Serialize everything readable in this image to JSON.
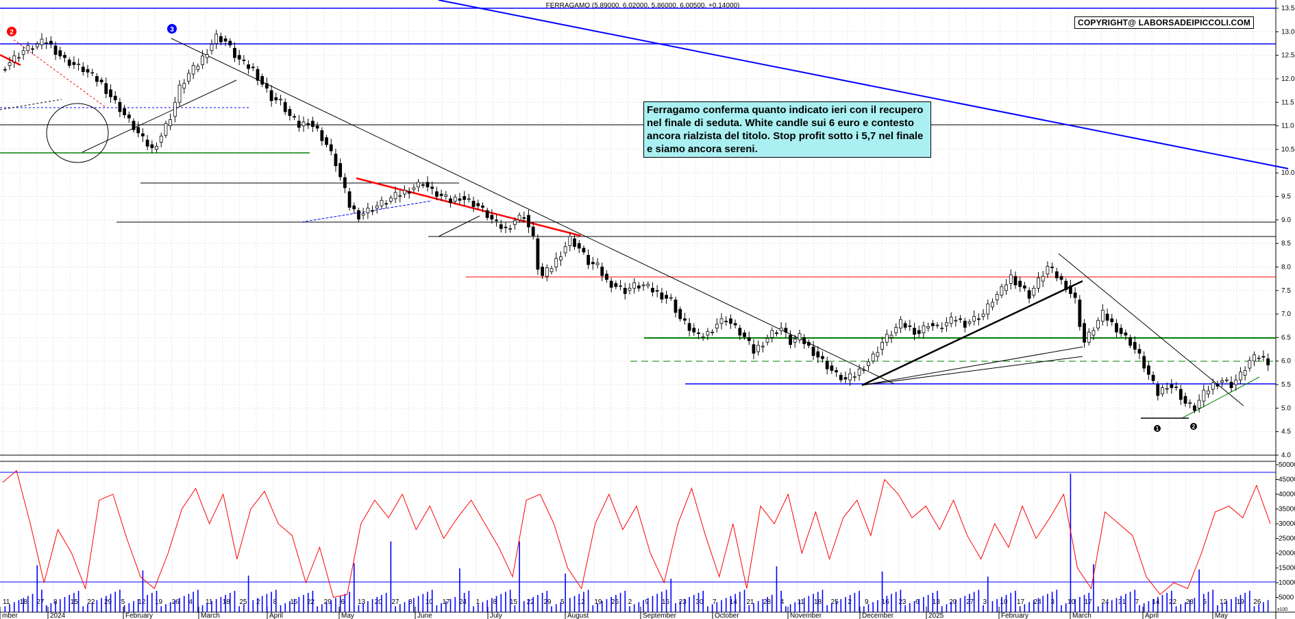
{
  "header": {
    "ticker_line": "FERRAGAMO (5,89000, 6,02000, 5,86000, 6,00500, +0,14000)"
  },
  "copyright": "COPYRIGHT@ LABORSADEIPICCOLI.COM",
  "annotation": "Ferragamo conferma quanto indicato ieri con il recupero nel finale di seduta. White candle sui 6 euro e contesto ancora rialzista del titolo. Stop profit sotto i 5,7 nel finale e siamo ancora sereni.",
  "colors": {
    "support": "#0000ff",
    "green": "#008000",
    "red": "#ff0000",
    "rsi": "#ff0000",
    "volume": "#0000ff",
    "note_bg": "#aaf0f2"
  },
  "markers": {
    "wave_2": "2",
    "wave_3": "3",
    "bottom_1": "1",
    "bottom_2": "2"
  },
  "chart_data": {
    "type": "candlestick",
    "title": "FERRAGAMO (5,89000, 6,02000, 5,86000, 6,00500, +0,14000)",
    "last_bar": {
      "open": 5.89,
      "high": 6.02,
      "low": 5.86,
      "close": 6.005,
      "change": 0.14
    },
    "price_axis": {
      "ticks": [
        "13.5",
        "13.0",
        "12.5",
        "12.0",
        "11.5",
        "11.0",
        "10.5",
        "10.0",
        "9.5",
        "9.0",
        "8.5",
        "8.0",
        "7.5",
        "7.0",
        "6.5",
        "6.0",
        "5.5",
        "5.0",
        "4.5",
        "4.0"
      ],
      "range": [
        4.0,
        13.5
      ]
    },
    "volume_axis": {
      "ticks": [
        "50000",
        "45000",
        "40000",
        "35000",
        "30000",
        "25000",
        "20000",
        "15000",
        "10000",
        "5000"
      ],
      "range": [
        0,
        50000
      ],
      "unit_label": "x100"
    },
    "x_axis": {
      "day_labels": [
        "11",
        "18",
        "27",
        "8",
        "15",
        "22",
        "29",
        "5",
        "12",
        "19",
        "26",
        "4",
        "11",
        "18",
        "25",
        "2",
        "8",
        "15",
        "22",
        "29",
        "6",
        "13",
        "20",
        "27",
        "3",
        "10",
        "17",
        "24",
        "1",
        "8",
        "15",
        "22",
        "29",
        "5",
        "12",
        "19",
        "26",
        "2",
        "9",
        "16",
        "23",
        "30",
        "7",
        "14",
        "21",
        "28",
        "4",
        "11",
        "18",
        "25",
        "2",
        "9",
        "16",
        "23",
        "6",
        "13",
        "20",
        "27",
        "3",
        "10",
        "17",
        "24",
        "3",
        "10",
        "17",
        "24",
        "31",
        "7",
        "14",
        "22",
        "28",
        "5",
        "12",
        "19",
        "26"
      ],
      "month_labels": [
        "mber",
        "2024",
        "February",
        "March",
        "April",
        "May",
        "June",
        "July",
        "August",
        "September",
        "October",
        "November",
        "December",
        "2025",
        "February",
        "March",
        "April",
        "May"
      ]
    },
    "series": [
      {
        "name": "price",
        "points": [
          [
            0,
            12.2
          ],
          [
            5,
            12.6
          ],
          [
            10,
            12.8
          ],
          [
            14,
            12.4
          ],
          [
            18,
            12.2
          ],
          [
            22,
            11.9
          ],
          [
            25,
            11.5
          ],
          [
            28,
            11.1
          ],
          [
            31,
            10.7
          ],
          [
            33,
            10.5
          ],
          [
            35,
            10.8
          ],
          [
            37,
            11.2
          ],
          [
            39,
            11.8
          ],
          [
            41,
            12.1
          ],
          [
            43,
            12.3
          ],
          [
            45,
            12.6
          ],
          [
            47,
            12.9
          ],
          [
            49,
            12.8
          ],
          [
            51,
            12.5
          ],
          [
            53,
            12.3
          ],
          [
            55,
            12.2
          ],
          [
            57,
            11.9
          ],
          [
            59,
            11.6
          ],
          [
            61,
            11.5
          ],
          [
            63,
            11.2
          ],
          [
            65,
            11.0
          ],
          [
            67,
            11.1
          ],
          [
            69,
            10.9
          ],
          [
            71,
            10.6
          ],
          [
            73,
            10.2
          ],
          [
            74,
            9.9
          ],
          [
            75,
            9.6
          ],
          [
            76,
            9.3
          ],
          [
            78,
            9.1
          ],
          [
            80,
            9.2
          ],
          [
            82,
            9.3
          ],
          [
            84,
            9.4
          ],
          [
            86,
            9.5
          ],
          [
            88,
            9.6
          ],
          [
            90,
            9.7
          ],
          [
            92,
            9.8
          ],
          [
            94,
            9.6
          ],
          [
            96,
            9.5
          ],
          [
            98,
            9.4
          ],
          [
            100,
            9.5
          ],
          [
            102,
            9.4
          ],
          [
            104,
            9.3
          ],
          [
            106,
            9.1
          ],
          [
            108,
            8.9
          ],
          [
            110,
            8.8
          ],
          [
            112,
            9.0
          ],
          [
            114,
            9.1
          ],
          [
            116,
            8.6
          ],
          [
            117,
            8.0
          ],
          [
            118,
            7.8
          ],
          [
            120,
            8.0
          ],
          [
            122,
            8.3
          ],
          [
            124,
            8.6
          ],
          [
            126,
            8.4
          ],
          [
            128,
            8.1
          ],
          [
            130,
            8.0
          ],
          [
            132,
            7.7
          ],
          [
            134,
            7.6
          ],
          [
            136,
            7.5
          ],
          [
            138,
            7.6
          ],
          [
            140,
            7.6
          ],
          [
            142,
            7.5
          ],
          [
            144,
            7.4
          ],
          [
            146,
            7.3
          ],
          [
            148,
            6.9
          ],
          [
            150,
            6.7
          ],
          [
            152,
            6.5
          ],
          [
            154,
            6.6
          ],
          [
            156,
            6.8
          ],
          [
            158,
            6.9
          ],
          [
            160,
            6.7
          ],
          [
            162,
            6.5
          ],
          [
            164,
            6.2
          ],
          [
            166,
            6.4
          ],
          [
            168,
            6.6
          ],
          [
            170,
            6.7
          ],
          [
            172,
            6.4
          ],
          [
            174,
            6.5
          ],
          [
            176,
            6.3
          ],
          [
            178,
            6.1
          ],
          [
            180,
            5.9
          ],
          [
            182,
            5.7
          ],
          [
            184,
            5.6
          ],
          [
            186,
            5.7
          ],
          [
            188,
            5.9
          ],
          [
            190,
            6.1
          ],
          [
            192,
            6.4
          ],
          [
            194,
            6.6
          ],
          [
            196,
            6.8
          ],
          [
            198,
            6.7
          ],
          [
            200,
            6.6
          ],
          [
            202,
            6.8
          ],
          [
            204,
            6.7
          ],
          [
            206,
            6.8
          ],
          [
            208,
            6.9
          ],
          [
            210,
            6.8
          ],
          [
            212,
            6.9
          ],
          [
            214,
            7.0
          ],
          [
            216,
            7.3
          ],
          [
            218,
            7.5
          ],
          [
            220,
            7.8
          ],
          [
            222,
            7.6
          ],
          [
            224,
            7.4
          ],
          [
            226,
            7.7
          ],
          [
            228,
            8.0
          ],
          [
            230,
            7.8
          ],
          [
            232,
            7.6
          ],
          [
            234,
            7.3
          ],
          [
            235,
            6.8
          ],
          [
            236,
            6.4
          ],
          [
            238,
            6.7
          ],
          [
            240,
            7.0
          ],
          [
            242,
            6.8
          ],
          [
            244,
            6.6
          ],
          [
            246,
            6.4
          ],
          [
            248,
            6.1
          ],
          [
            250,
            5.7
          ],
          [
            252,
            5.3
          ],
          [
            254,
            5.5
          ],
          [
            256,
            5.4
          ],
          [
            258,
            5.1
          ],
          [
            260,
            5.0
          ],
          [
            262,
            5.3
          ],
          [
            264,
            5.5
          ],
          [
            266,
            5.6
          ],
          [
            268,
            5.5
          ],
          [
            270,
            5.7
          ],
          [
            272,
            6.0
          ],
          [
            274,
            6.1
          ],
          [
            276,
            6.0
          ]
        ]
      },
      {
        "name": "oscillator",
        "points": [
          [
            0,
            44000
          ],
          [
            3,
            48000
          ],
          [
            6,
            30000
          ],
          [
            9,
            10000
          ],
          [
            12,
            28000
          ],
          [
            15,
            20000
          ],
          [
            18,
            8000
          ],
          [
            21,
            38000
          ],
          [
            24,
            40000
          ],
          [
            27,
            25000
          ],
          [
            30,
            12000
          ],
          [
            33,
            8000
          ],
          [
            36,
            20000
          ],
          [
            39,
            35000
          ],
          [
            42,
            42000
          ],
          [
            45,
            30000
          ],
          [
            48,
            40000
          ],
          [
            51,
            18000
          ],
          [
            54,
            35000
          ],
          [
            57,
            41000
          ],
          [
            60,
            30000
          ],
          [
            63,
            26000
          ],
          [
            66,
            10000
          ],
          [
            69,
            22000
          ],
          [
            72,
            5000
          ],
          [
            75,
            6000
          ],
          [
            78,
            30000
          ],
          [
            81,
            38000
          ],
          [
            84,
            32000
          ],
          [
            87,
            40000
          ],
          [
            90,
            28000
          ],
          [
            93,
            36000
          ],
          [
            96,
            25000
          ],
          [
            99,
            32000
          ],
          [
            102,
            38000
          ],
          [
            105,
            30000
          ],
          [
            108,
            22000
          ],
          [
            111,
            12000
          ],
          [
            114,
            38000
          ],
          [
            117,
            40000
          ],
          [
            120,
            30000
          ],
          [
            123,
            15000
          ],
          [
            126,
            8000
          ],
          [
            129,
            30000
          ],
          [
            132,
            40000
          ],
          [
            135,
            28000
          ],
          [
            138,
            36000
          ],
          [
            141,
            20000
          ],
          [
            144,
            10000
          ],
          [
            147,
            30000
          ],
          [
            150,
            42000
          ],
          [
            153,
            26000
          ],
          [
            156,
            12000
          ],
          [
            159,
            30000
          ],
          [
            162,
            8000
          ],
          [
            165,
            36000
          ],
          [
            168,
            30000
          ],
          [
            171,
            40000
          ],
          [
            174,
            20000
          ],
          [
            177,
            34000
          ],
          [
            180,
            18000
          ],
          [
            183,
            32000
          ],
          [
            186,
            38000
          ],
          [
            189,
            26000
          ],
          [
            192,
            45000
          ],
          [
            195,
            40000
          ],
          [
            198,
            32000
          ],
          [
            201,
            36000
          ],
          [
            204,
            28000
          ],
          [
            207,
            38000
          ],
          [
            210,
            26000
          ],
          [
            213,
            18000
          ],
          [
            216,
            30000
          ],
          [
            219,
            22000
          ],
          [
            222,
            36000
          ],
          [
            225,
            25000
          ],
          [
            228,
            32000
          ],
          [
            231,
            40000
          ],
          [
            234,
            15000
          ],
          [
            237,
            8000
          ],
          [
            240,
            34000
          ],
          [
            243,
            30000
          ],
          [
            246,
            26000
          ],
          [
            249,
            12000
          ],
          [
            252,
            6000
          ],
          [
            255,
            10000
          ],
          [
            258,
            8000
          ],
          [
            261,
            20000
          ],
          [
            264,
            34000
          ],
          [
            267,
            36000
          ],
          [
            270,
            32000
          ],
          [
            273,
            43000
          ],
          [
            276,
            30000
          ]
        ]
      }
    ]
  }
}
